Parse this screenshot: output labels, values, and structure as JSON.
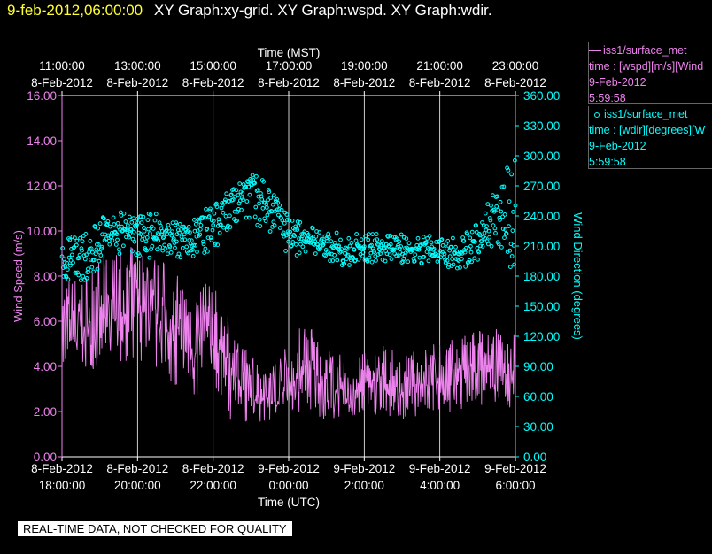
{
  "header": {
    "timestamp": "9-feb-2012,06:00:00",
    "graphs": "XY Graph:xy-grid.  XY Graph:wspd.  XY Graph:wdir."
  },
  "quality_banner": "REAL-TIME DATA, NOT CHECKED FOR QUALITY",
  "legend": [
    {
      "label": "iss1/surface_met",
      "field": "time : [wspd][m/s][Wind",
      "date": "9-Feb-2012",
      "time": "5:59:58",
      "color": "#ee82ee",
      "symbol": "line"
    },
    {
      "label": "iss1/surface_met",
      "field": "time : [wdir][degrees][W",
      "date": "9-Feb-2012",
      "time": "5:59:58",
      "color": "#00ffff",
      "symbol": "circle"
    }
  ],
  "chart_data": {
    "type": "line",
    "top_axis": {
      "title": "Time (MST)",
      "ticks": [
        {
          "time": "11:00:00",
          "date": "8-Feb-2012"
        },
        {
          "time": "13:00:00",
          "date": "8-Feb-2012"
        },
        {
          "time": "15:00:00",
          "date": "8-Feb-2012"
        },
        {
          "time": "17:00:00",
          "date": "8-Feb-2012"
        },
        {
          "time": "19:00:00",
          "date": "8-Feb-2012"
        },
        {
          "time": "21:00:00",
          "date": "8-Feb-2012"
        },
        {
          "time": "23:00:00",
          "date": "8-Feb-2012"
        }
      ]
    },
    "bottom_axis": {
      "title": "Time (UTC)",
      "range": [
        "2012-02-08T18:00:00Z",
        "2012-02-09T06:00:00Z"
      ],
      "ticks": [
        {
          "date": "8-Feb-2012",
          "time": "18:00:00"
        },
        {
          "date": "8-Feb-2012",
          "time": "20:00:00"
        },
        {
          "date": "8-Feb-2012",
          "time": "22:00:00"
        },
        {
          "date": "9-Feb-2012",
          "time": "0:00:00"
        },
        {
          "date": "9-Feb-2012",
          "time": "2:00:00"
        },
        {
          "date": "9-Feb-2012",
          "time": "4:00:00"
        },
        {
          "date": "9-Feb-2012",
          "time": "6:00:00"
        }
      ]
    },
    "left_axis": {
      "title": "Wind Speed (m/s)",
      "ylim": [
        0,
        16
      ],
      "ticks": [
        "0.00",
        "2.00",
        "4.00",
        "6.00",
        "8.00",
        "10.00",
        "12.00",
        "14.00",
        "16.00"
      ],
      "color": "#ee82ee"
    },
    "right_axis": {
      "title": "Wind Direction (degrees)",
      "ylim": [
        0,
        360
      ],
      "ticks": [
        "0.00",
        "30.00",
        "60.00",
        "90.00",
        "120.00",
        "150.00",
        "180.00",
        "210.00",
        "240.00",
        "270.00",
        "300.00",
        "330.00",
        "360.00"
      ],
      "color": "#00ffff"
    },
    "grid": "vertical",
    "series": [
      {
        "name": "wspd",
        "color": "#ee82ee",
        "style": "line",
        "x": [
          "2012-02-08T18:00:00Z",
          "2012-02-08T18:30:00Z",
          "2012-02-08T19:00:00Z",
          "2012-02-08T19:30:00Z",
          "2012-02-08T20:00:00Z",
          "2012-02-08T20:30:00Z",
          "2012-02-08T21:00:00Z",
          "2012-02-08T21:30:00Z",
          "2012-02-08T22:00:00Z",
          "2012-02-08T22:30:00Z",
          "2012-02-08T23:00:00Z",
          "2012-02-08T23:30:00Z",
          "2012-02-09T00:00:00Z",
          "2012-02-09T00:30:00Z",
          "2012-02-09T01:00:00Z",
          "2012-02-09T01:30:00Z",
          "2012-02-09T02:00:00Z",
          "2012-02-09T02:30:00Z",
          "2012-02-09T03:00:00Z",
          "2012-02-09T03:30:00Z",
          "2012-02-09T04:00:00Z",
          "2012-02-09T04:30:00Z",
          "2012-02-09T05:00:00Z",
          "2012-02-09T05:30:00Z",
          "2012-02-09T06:00:00Z"
        ],
        "min": [
          3.5,
          3.8,
          3.8,
          4.0,
          4.0,
          3.8,
          2.8,
          2.2,
          2.6,
          1.5,
          1.5,
          1.5,
          1.8,
          2.0,
          1.6,
          1.6,
          1.8,
          1.8,
          1.6,
          1.8,
          1.8,
          2.0,
          2.2,
          2.2,
          2.0
        ],
        "mean": [
          5.6,
          5.4,
          5.8,
          6.2,
          6.6,
          6.3,
          5.2,
          4.8,
          5.5,
          3.8,
          2.8,
          2.6,
          3.0,
          4.0,
          3.0,
          2.8,
          3.1,
          3.3,
          3.0,
          3.3,
          3.4,
          3.5,
          3.9,
          3.7,
          3.5
        ],
        "max": [
          8.2,
          8.0,
          8.8,
          9.2,
          9.4,
          9.0,
          8.2,
          7.6,
          7.8,
          5.8,
          4.6,
          4.3,
          5.0,
          6.4,
          5.0,
          4.4,
          4.6,
          5.0,
          4.5,
          4.8,
          5.2,
          5.2,
          5.8,
          5.7,
          5.6
        ]
      },
      {
        "name": "wdir",
        "color": "#00ffff",
        "style": "circles",
        "x": [
          "2012-02-08T18:00:00Z",
          "2012-02-08T18:30:00Z",
          "2012-02-08T19:00:00Z",
          "2012-02-08T19:30:00Z",
          "2012-02-08T20:00:00Z",
          "2012-02-08T20:30:00Z",
          "2012-02-08T21:00:00Z",
          "2012-02-08T21:30:00Z",
          "2012-02-08T22:00:00Z",
          "2012-02-08T22:30:00Z",
          "2012-02-08T23:00:00Z",
          "2012-02-08T23:30:00Z",
          "2012-02-09T00:00:00Z",
          "2012-02-09T00:30:00Z",
          "2012-02-09T01:00:00Z",
          "2012-02-09T01:30:00Z",
          "2012-02-09T02:00:00Z",
          "2012-02-09T02:30:00Z",
          "2012-02-09T03:00:00Z",
          "2012-02-09T03:30:00Z",
          "2012-02-09T04:00:00Z",
          "2012-02-09T04:30:00Z",
          "2012-02-09T05:00:00Z",
          "2012-02-09T05:30:00Z",
          "2012-02-09T06:00:00Z"
        ],
        "min": [
          172,
          170,
          185,
          198,
          195,
          200,
          198,
          200,
          205,
          230,
          235,
          222,
          200,
          198,
          195,
          190,
          194,
          192,
          192,
          192,
          194,
          182,
          196,
          212,
          180
        ],
        "mean": [
          200,
          197,
          213,
          228,
          222,
          220,
          218,
          222,
          228,
          255,
          273,
          255,
          223,
          213,
          210,
          205,
          208,
          207,
          207,
          207,
          207,
          202,
          212,
          235,
          222
        ],
        "max": [
          225,
          220,
          238,
          245,
          240,
          245,
          238,
          242,
          250,
          270,
          282,
          275,
          240,
          230,
          225,
          222,
          223,
          222,
          222,
          222,
          222,
          218,
          232,
          275,
          300
        ]
      }
    ]
  }
}
